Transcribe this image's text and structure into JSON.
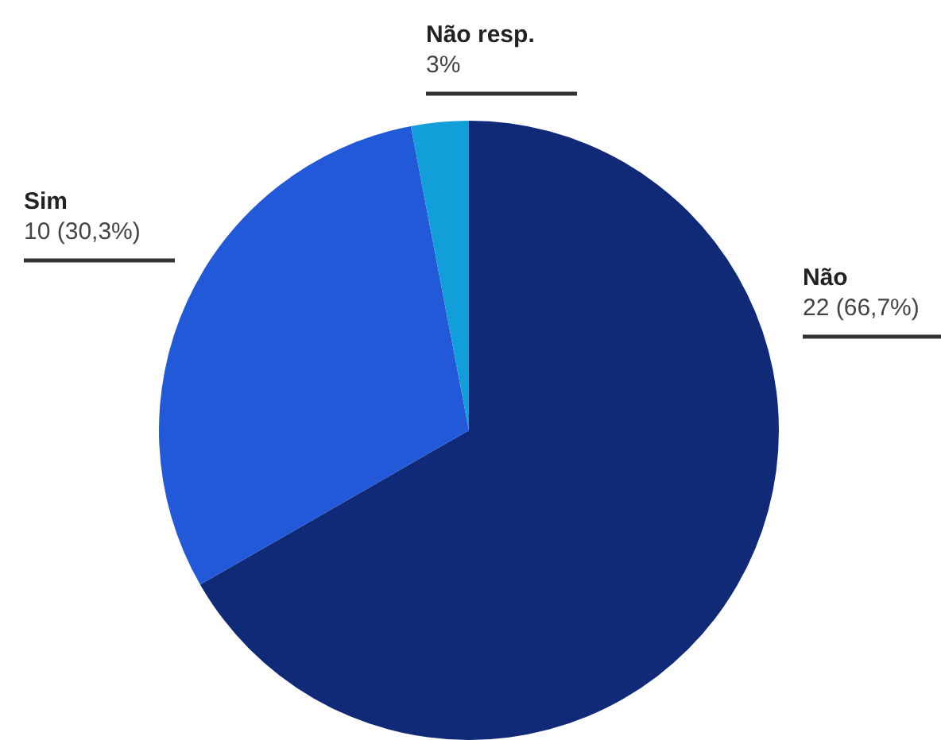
{
  "chart_data": {
    "type": "pie",
    "categories": [
      "Não",
      "Sim",
      "Não resp."
    ],
    "values": [
      66.7,
      30.3,
      3.0
    ],
    "colors": [
      "#112a78",
      "#2159d9",
      "#129ed8"
    ],
    "value_labels": [
      "22 (66,7%)",
      "10 (30,3%)",
      "3%"
    ],
    "legend": false
  }
}
